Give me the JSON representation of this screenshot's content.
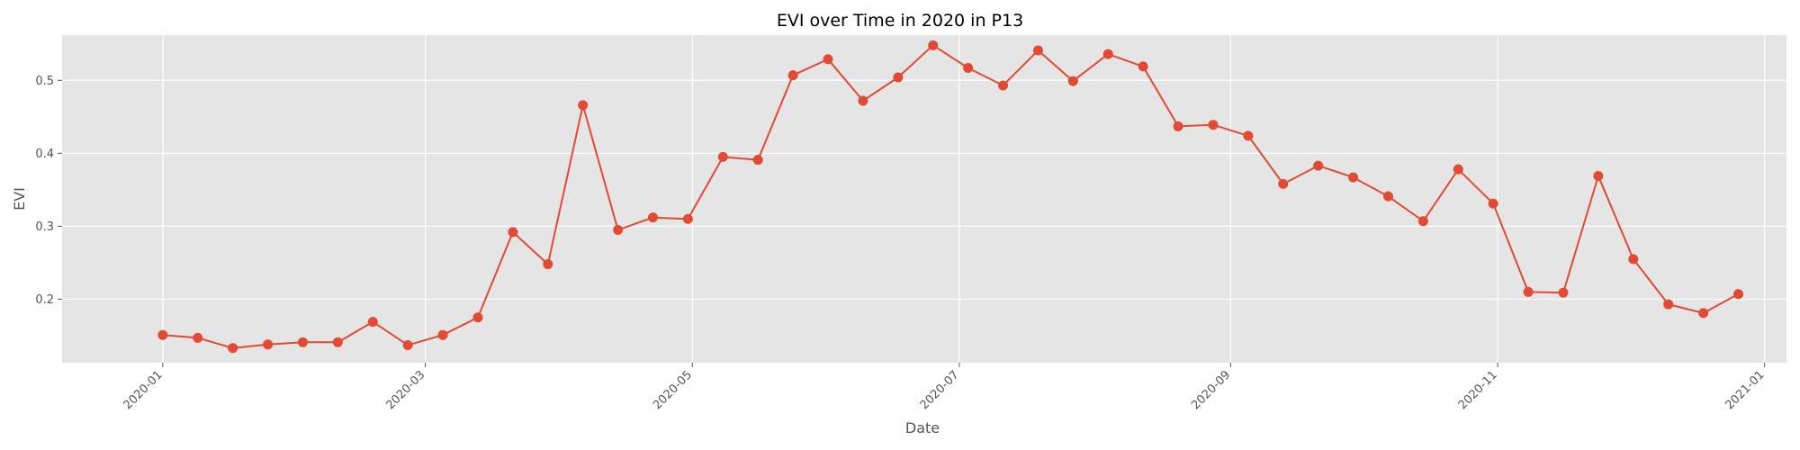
{
  "chart_data": {
    "type": "line",
    "title": "EVI over Time in 2020 in P13",
    "xlabel": "Date",
    "ylabel": "EVI",
    "xlim": [
      "2019-12-09",
      "2021-01-06"
    ],
    "ylim": [
      0.113,
      0.562
    ],
    "grid": true,
    "x_ticks": [
      "2020-01",
      "2020-03",
      "2020-05",
      "2020-07",
      "2020-09",
      "2020-11",
      "2021-01"
    ],
    "y_ticks": [
      "0.2",
      "0.3",
      "0.4",
      "0.5"
    ],
    "colors": {
      "line": "#E24A33",
      "plot_background": "#E5E5E5",
      "grid": "#FFFFFF"
    },
    "series": [
      {
        "x": [
          "2020-01-01",
          "2020-01-09",
          "2020-01-17",
          "2020-01-25",
          "2020-02-02",
          "2020-02-10",
          "2020-02-18",
          "2020-02-26",
          "2020-03-05",
          "2020-03-13",
          "2020-03-21",
          "2020-03-29",
          "2020-04-06",
          "2020-04-14",
          "2020-04-22",
          "2020-04-30",
          "2020-05-08",
          "2020-05-16",
          "2020-05-24",
          "2020-06-01",
          "2020-06-09",
          "2020-06-17",
          "2020-06-25",
          "2020-07-03",
          "2020-07-11",
          "2020-07-19",
          "2020-07-27",
          "2020-08-04",
          "2020-08-12",
          "2020-08-20",
          "2020-08-28",
          "2020-09-05",
          "2020-09-13",
          "2020-09-21",
          "2020-09-29",
          "2020-10-07",
          "2020-10-15",
          "2020-10-23",
          "2020-10-31",
          "2020-11-08",
          "2020-11-16",
          "2020-11-24",
          "2020-12-02",
          "2020-12-10",
          "2020-12-18",
          "2020-12-26"
        ],
        "y": [
          0.151,
          0.147,
          0.133,
          0.138,
          0.141,
          0.141,
          0.169,
          0.137,
          0.151,
          0.175,
          0.292,
          0.248,
          0.466,
          0.295,
          0.312,
          0.31,
          0.395,
          0.391,
          0.507,
          0.529,
          0.472,
          0.504,
          0.548,
          0.517,
          0.493,
          0.541,
          0.499,
          0.536,
          0.519,
          0.437,
          0.439,
          0.424,
          0.358,
          0.383,
          0.367,
          0.341,
          0.307,
          0.378,
          0.331,
          0.21,
          0.209,
          0.369,
          0.255,
          0.193,
          0.181,
          0.207
        ]
      }
    ]
  }
}
